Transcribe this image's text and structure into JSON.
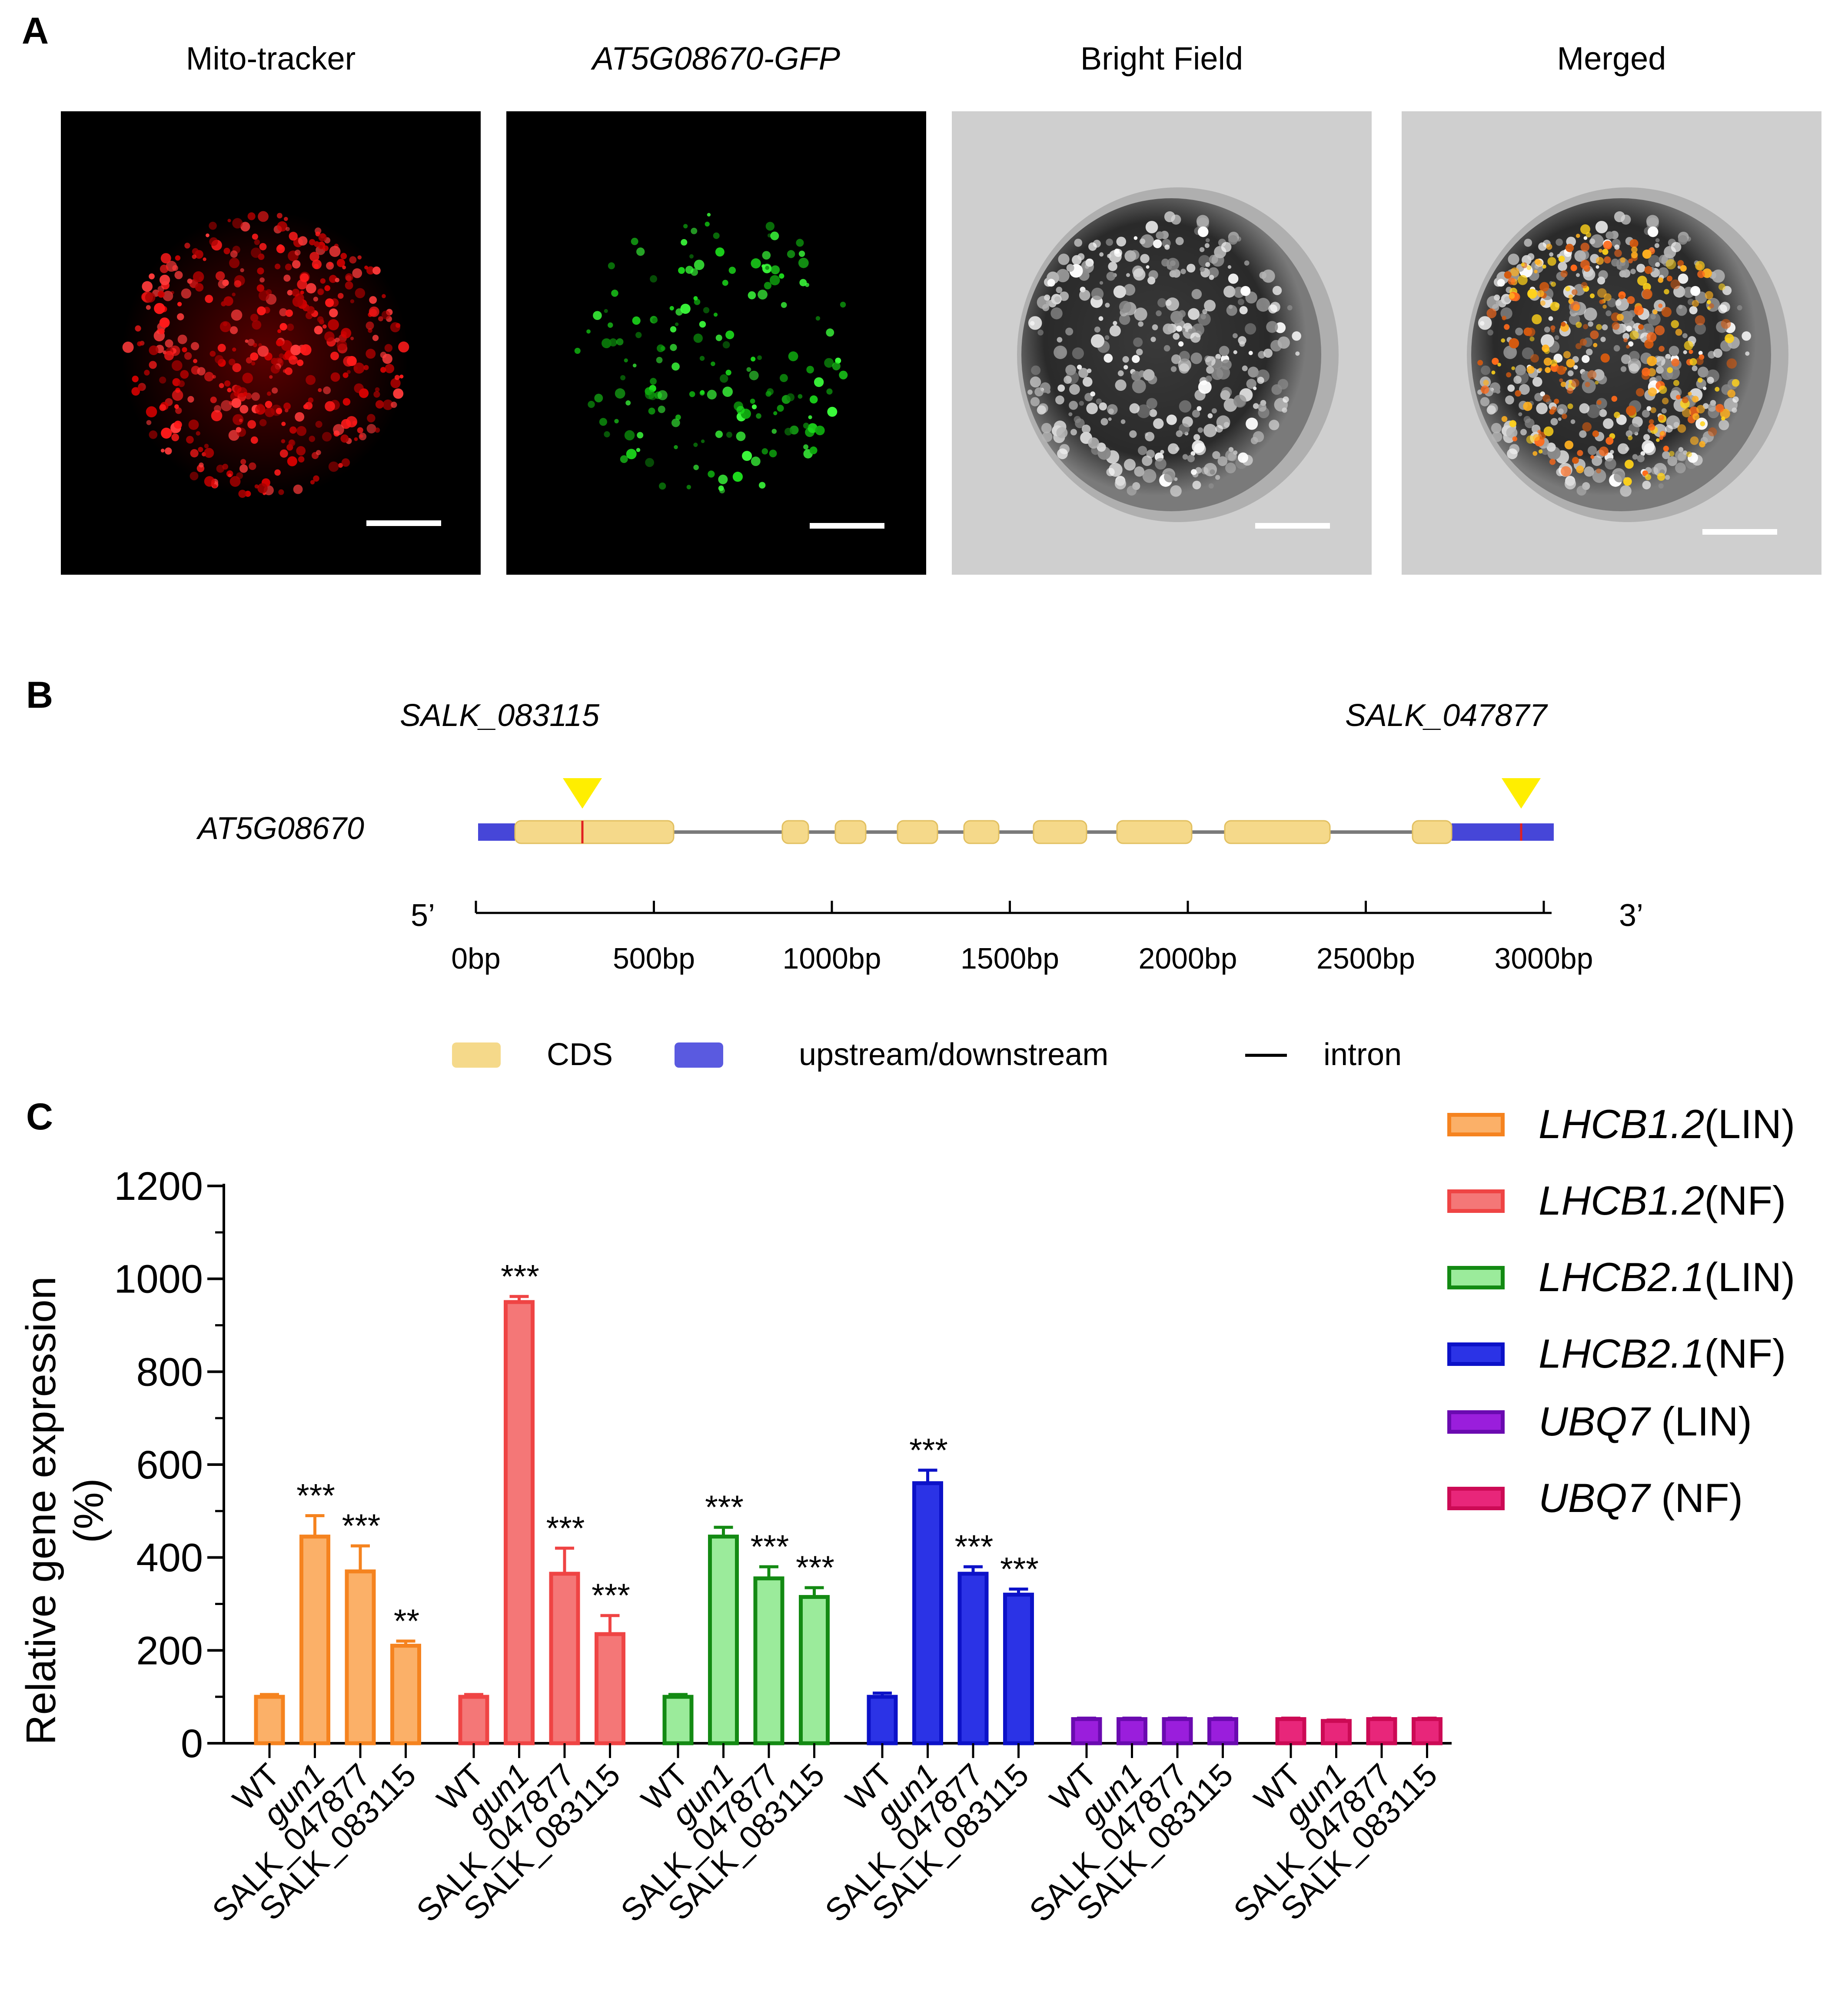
{
  "panel_a": {
    "letter": "A",
    "panels": [
      {
        "title": "Mito-tracker",
        "italic": false
      },
      {
        "title": "AT5G08670-GFP",
        "italic": true
      },
      {
        "title": "Bright Field",
        "italic": false
      },
      {
        "title": "Merged",
        "italic": false
      }
    ]
  },
  "panel_b": {
    "letter": "B",
    "gene": "AT5G08670",
    "insertion_left": "SALK_083115",
    "insertion_right": "SALK_047877",
    "five_prime": "5’",
    "three_prime": "3’",
    "scale_ticks": [
      "0bp",
      "500bp",
      "1000bp",
      "1500bp",
      "2000bp",
      "2500bp",
      "3000bp"
    ],
    "scale_values": [
      0,
      500,
      1000,
      1500,
      2000,
      2500,
      3000
    ],
    "legend": {
      "cds": "CDS",
      "utr": "upstream/downstream",
      "intron": "intron"
    },
    "colors": {
      "cds": "#f5d98a",
      "utr": "#4646d8",
      "intron": "#7a7a7a",
      "marker": "#ffee00",
      "insertion": "#e02020"
    }
  },
  "panel_c": {
    "letter": "C",
    "chart_data": {
      "type": "bar",
      "ylabel": "Relative gene expression (%)",
      "ylim": [
        0,
        1200
      ],
      "yticks": [
        0,
        200,
        400,
        600,
        800,
        1000,
        1200
      ],
      "categories": [
        "WT",
        "gun1",
        "SALK_047877",
        "SALK_083115"
      ],
      "series": [
        {
          "name": "LHCB1.2",
          "suffix": "(LIN)",
          "color": "#f5831f",
          "fill": "#fbb068",
          "values": [
            100,
            445,
            370,
            210
          ],
          "errors": [
            5,
            45,
            55,
            10
          ],
          "sig": [
            "",
            "***",
            "***",
            "**"
          ]
        },
        {
          "name": "LHCB1.2",
          "suffix": "(NF)",
          "color": "#ef4444",
          "fill": "#f47777",
          "values": [
            100,
            950,
            365,
            235
          ],
          "errors": [
            5,
            12,
            55,
            40
          ],
          "sig": [
            "",
            "***",
            "***",
            "***"
          ]
        },
        {
          "name": "LHCB2.1",
          "suffix": "(LIN)",
          "color": "#138a13",
          "fill": "#9beb9b",
          "values": [
            100,
            445,
            355,
            315
          ],
          "errors": [
            5,
            20,
            25,
            20
          ],
          "sig": [
            "",
            "***",
            "***",
            "***"
          ]
        },
        {
          "name": "LHCB2.1",
          "suffix": "(NF)",
          "color": "#0c12c8",
          "fill": "#2b33e6",
          "values": [
            100,
            560,
            365,
            320
          ],
          "errors": [
            8,
            28,
            15,
            12
          ],
          "sig": [
            "",
            "***",
            "***",
            "***"
          ]
        },
        {
          "name": "UBQ7",
          "suffix": " (LIN)",
          "color": "#6a0ab0",
          "fill": "#9a1edc",
          "values": [
            52,
            52,
            52,
            52
          ],
          "errors": [
            2,
            2,
            2,
            2
          ],
          "sig": [
            "",
            "",
            "",
            ""
          ]
        },
        {
          "name": "UBQ7",
          "suffix": " (NF)",
          "color": "#cc0a55",
          "fill": "#e8267a",
          "values": [
            52,
            48,
            52,
            52
          ],
          "errors": [
            2,
            2,
            2,
            2
          ],
          "sig": [
            "",
            "",
            "",
            ""
          ]
        }
      ]
    }
  }
}
